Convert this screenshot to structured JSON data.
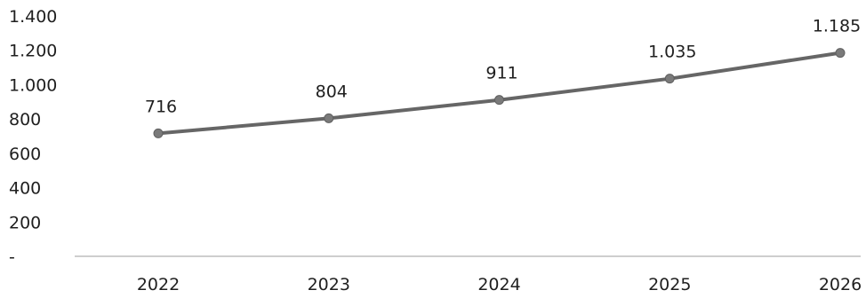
{
  "chart_data": {
    "type": "line",
    "categories": [
      "2022",
      "2023",
      "2024",
      "2025",
      "2026"
    ],
    "series": [
      {
        "values": [
          716,
          804,
          911,
          1035,
          1185
        ],
        "labels": [
          "716",
          "804",
          "911",
          "1.035",
          "1.185"
        ]
      }
    ],
    "y_ticks": [
      {
        "value": 0,
        "label": "-"
      },
      {
        "value": 200,
        "label": "200"
      },
      {
        "value": 400,
        "label": "400"
      },
      {
        "value": 600,
        "label": "600"
      },
      {
        "value": 800,
        "label": "800"
      },
      {
        "value": 1000,
        "label": "1.000"
      },
      {
        "value": 1200,
        "label": "1.200"
      },
      {
        "value": 1400,
        "label": "1.400"
      }
    ],
    "ylim": [
      0,
      1400
    ],
    "grid": false,
    "legend": "none",
    "colors": {
      "line": "#666666",
      "marker": "#7a7a7a",
      "axis": "#bdbdbd",
      "text": "#1f1f1f"
    }
  }
}
